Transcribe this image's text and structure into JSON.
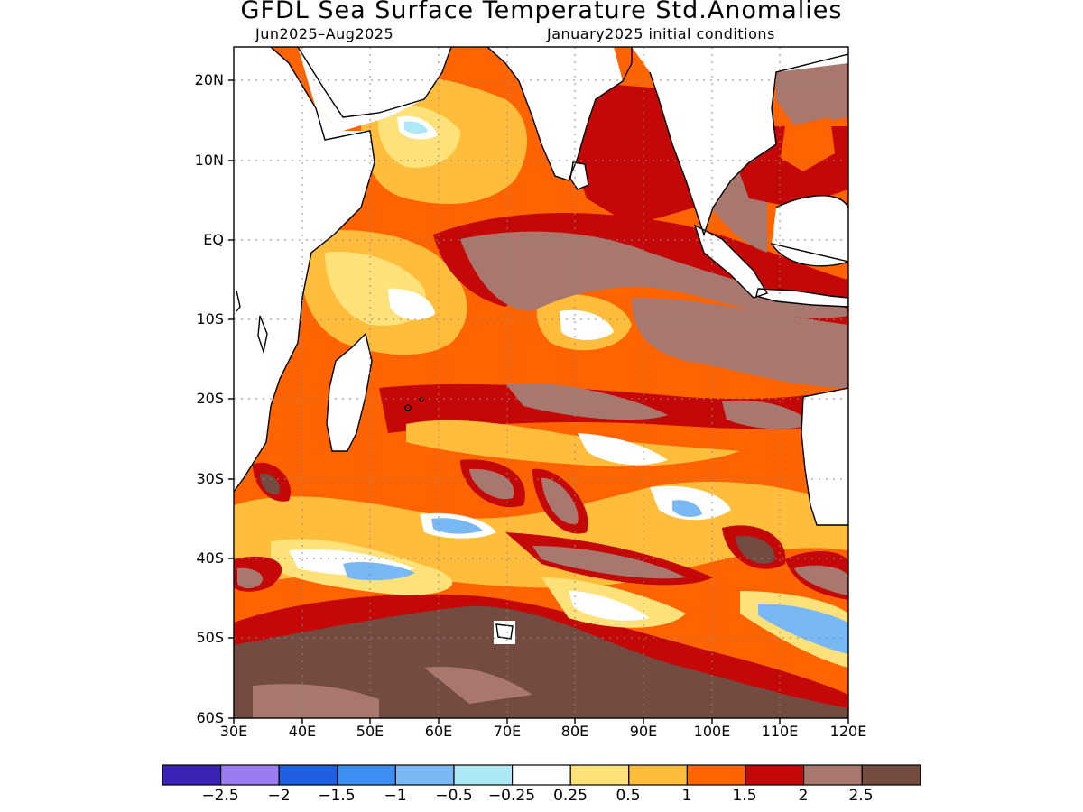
{
  "title": "GFDL Sea Surface Temperature Std.Anomalies",
  "subtitle_left": "Jun2025–Aug2025",
  "subtitle_right": "January2025 initial conditions",
  "map": {
    "region": "Indian Ocean",
    "lat_labels": [
      "20N",
      "10N",
      "EQ",
      "10S",
      "20S",
      "30S",
      "40S",
      "50S",
      "60S"
    ],
    "lon_labels": [
      "30E",
      "40E",
      "50E",
      "60E",
      "70E",
      "80E",
      "90E",
      "100E",
      "110E",
      "120E"
    ],
    "lon_range": [
      30,
      120
    ],
    "lat_range": [
      -60,
      24
    ],
    "grid": "dotted"
  },
  "colorbar": {
    "colors": [
      "#3b22b4",
      "#9b7cf0",
      "#1f60e3",
      "#3c8ff0",
      "#78b8f5",
      "#ace8f6",
      "#ffffff",
      "#ffe17a",
      "#ffbd3b",
      "#ff6400",
      "#c40808",
      "#a8776e",
      "#744b41"
    ],
    "labels": [
      "−2.5",
      "−2",
      "−1.5",
      "−1",
      "−0.5",
      "−0.25",
      "0.25",
      "0.5",
      "1",
      "1.5",
      "2",
      "2.5"
    ]
  }
}
